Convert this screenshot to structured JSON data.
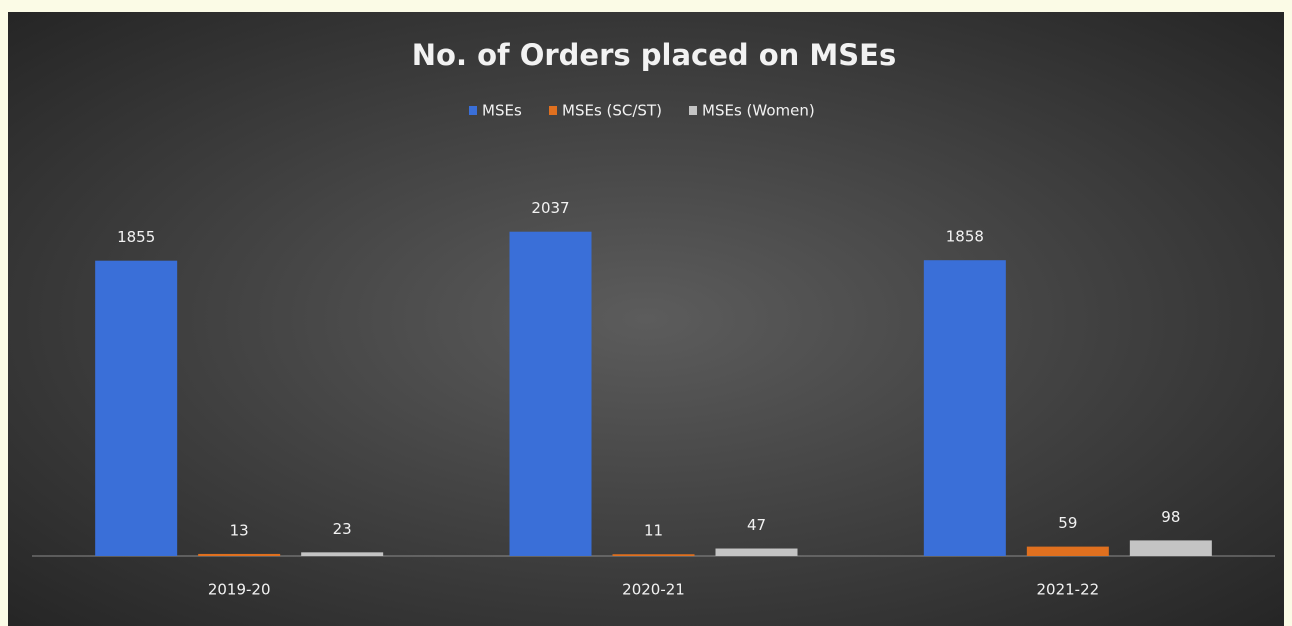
{
  "chart_data": {
    "type": "bar",
    "title": "No. of Orders placed on MSEs",
    "categories": [
      "2019-20",
      "2020-21",
      "2021-22"
    ],
    "series": [
      {
        "name": "MSEs",
        "color": "#3a6fd8",
        "values": [
          1855,
          2037,
          1858
        ]
      },
      {
        "name": "MSEs (SC/ST)",
        "color": "#e0701f",
        "values": [
          13,
          11,
          59
        ]
      },
      {
        "name": "MSEs (Women)",
        "color": "#c4c4c4",
        "values": [
          23,
          47,
          98
        ]
      }
    ],
    "ylim": [
      0,
      2500
    ],
    "legend": "top"
  }
}
